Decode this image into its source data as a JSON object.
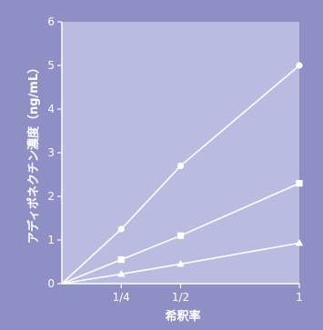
{
  "colors": {
    "background": "#8d8fc5",
    "plot_background": "#b9bbe0",
    "foreground": "#ffffff"
  },
  "chart_data": {
    "type": "line",
    "title": "",
    "xlabel": "希釈率",
    "ylabel": "アディポネクチン濃度（ng/mL）",
    "xlim": [
      0,
      1
    ],
    "ylim": [
      0,
      6
    ],
    "x_ticks": [
      0.25,
      0.5,
      1
    ],
    "x_tick_labels": [
      "1/4",
      "1/2",
      "1"
    ],
    "y_ticks": [
      0,
      1,
      2,
      3,
      4,
      5,
      6
    ],
    "y_tick_labels": [
      "0",
      "1",
      "2",
      "3",
      "4",
      "5",
      "6"
    ],
    "grid": false,
    "legend": "none",
    "series": [
      {
        "marker": "circle",
        "points": [
          {
            "x": 0,
            "y": 0
          },
          {
            "x": 0.25,
            "y": 1.25
          },
          {
            "x": 0.5,
            "y": 2.7
          },
          {
            "x": 1,
            "y": 5.0
          }
        ]
      },
      {
        "marker": "square",
        "points": [
          {
            "x": 0,
            "y": 0
          },
          {
            "x": 0.25,
            "y": 0.55
          },
          {
            "x": 0.5,
            "y": 1.1
          },
          {
            "x": 1,
            "y": 2.3
          }
        ]
      },
      {
        "marker": "triangle",
        "points": [
          {
            "x": 0,
            "y": 0
          },
          {
            "x": 0.25,
            "y": 0.22
          },
          {
            "x": 0.5,
            "y": 0.45
          },
          {
            "x": 1,
            "y": 0.93
          }
        ]
      }
    ]
  }
}
